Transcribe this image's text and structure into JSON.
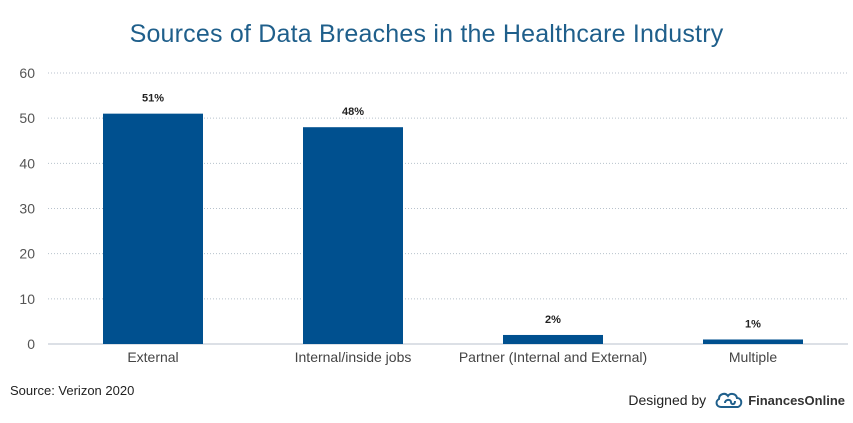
{
  "chart_data": {
    "type": "bar",
    "title": "Sources of Data Breaches in the Healthcare Industry",
    "categories": [
      "External",
      "Internal/inside jobs",
      "Partner (Internal and External)",
      "Multiple"
    ],
    "values": [
      51,
      48,
      2,
      1
    ],
    "data_labels": [
      "51%",
      "48%",
      "2%",
      "1%"
    ],
    "ylim": [
      0,
      60
    ],
    "yticks": [
      0,
      10,
      20,
      30,
      40,
      50,
      60
    ],
    "grid": true,
    "bar_color": "#00508f"
  },
  "footer": {
    "source": "Source: Verizon 2020",
    "designed_by": "Designed by",
    "brand": "FinancesOnline"
  }
}
